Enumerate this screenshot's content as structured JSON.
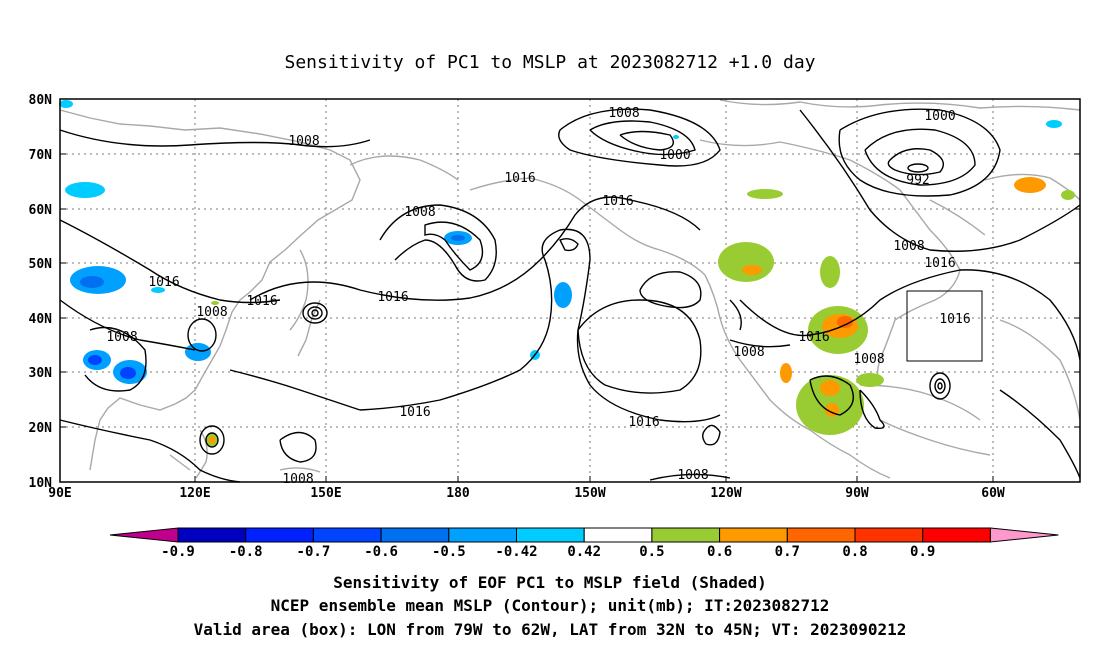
{
  "title": "Sensitivity of PC1 to MSLP at 2023082712 +1.0 day",
  "lat_ticks": [
    "80N",
    "70N",
    "60N",
    "50N",
    "40N",
    "30N",
    "20N",
    "10N"
  ],
  "lon_ticks": [
    "90E",
    "120E",
    "150E",
    "180",
    "150W",
    "120W",
    "90W",
    "60W"
  ],
  "contour_labels": [
    "1008",
    "1008",
    "1000",
    "1000",
    "992",
    "1016",
    "1016",
    "1008",
    "1016",
    "1016",
    "1008",
    "1016",
    "1008",
    "1016",
    "1016",
    "1008",
    "1016",
    "1008",
    "1016",
    "1008",
    "1016"
  ],
  "valid_box": {
    "lon_min": -79,
    "lon_max": -62,
    "lat_min": 32,
    "lat_max": 45
  },
  "colorbar": {
    "labels": [
      "-0.9",
      "-0.8",
      "-0.7",
      "-0.6",
      "-0.5",
      "-0.42",
      "0.42",
      "0.5",
      "0.6",
      "0.7",
      "0.8",
      "0.9"
    ],
    "colors": [
      "#0000c0",
      "#0020ff",
      "#0044ff",
      "#0070f0",
      "#00a0ff",
      "#00ccff",
      "#ffffff",
      "#99cc33",
      "#ff9900",
      "#ff6600",
      "#ff3300",
      "#ff0000"
    ],
    "low_end_color": "#c0008c",
    "high_end_color": "#ff99cc"
  },
  "caption": [
    "Sensitivity of EOF PC1 to MSLP field (Shaded)",
    "NCEP ensemble mean MSLP (Contour); unit(mb); IT:2023082712",
    "Valid area (box): LON from 79W to 62W, LAT from 32N to 45N; VT: 2023090212"
  ]
}
